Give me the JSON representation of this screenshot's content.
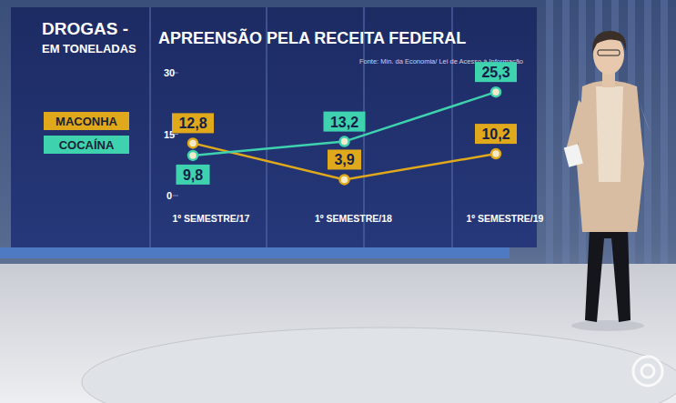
{
  "chart_data": {
    "type": "line",
    "subtitle": "DROGAS -",
    "y_label": "EM TONELADAS",
    "title": "APREENSÃO PELA RECEITA FEDERAL",
    "source": "Fonte: Min. da Economia/ Lei de Acesso à Informação",
    "categories": [
      "1º SEMESTRE/17",
      "1º SEMESTRE/18",
      "1º SEMESTRE/19"
    ],
    "series": [
      {
        "name": "MACONHA",
        "color": "#e0a91c",
        "values": [
          12.8,
          3.9,
          10.2
        ],
        "value_labels": [
          "12,8",
          "3,9",
          "10,2"
        ],
        "marker": "circle"
      },
      {
        "name": "COCAÍNA",
        "color": "#3fd2ae",
        "values": [
          9.8,
          13.2,
          25.3
        ],
        "value_labels": [
          "9,8",
          "13,2",
          "25,3"
        ],
        "marker": "circle"
      }
    ],
    "ylim": [
      0,
      30
    ],
    "yticks": [
      0,
      15,
      30
    ],
    "grid": false,
    "legend": "left",
    "data_labels": true
  }
}
